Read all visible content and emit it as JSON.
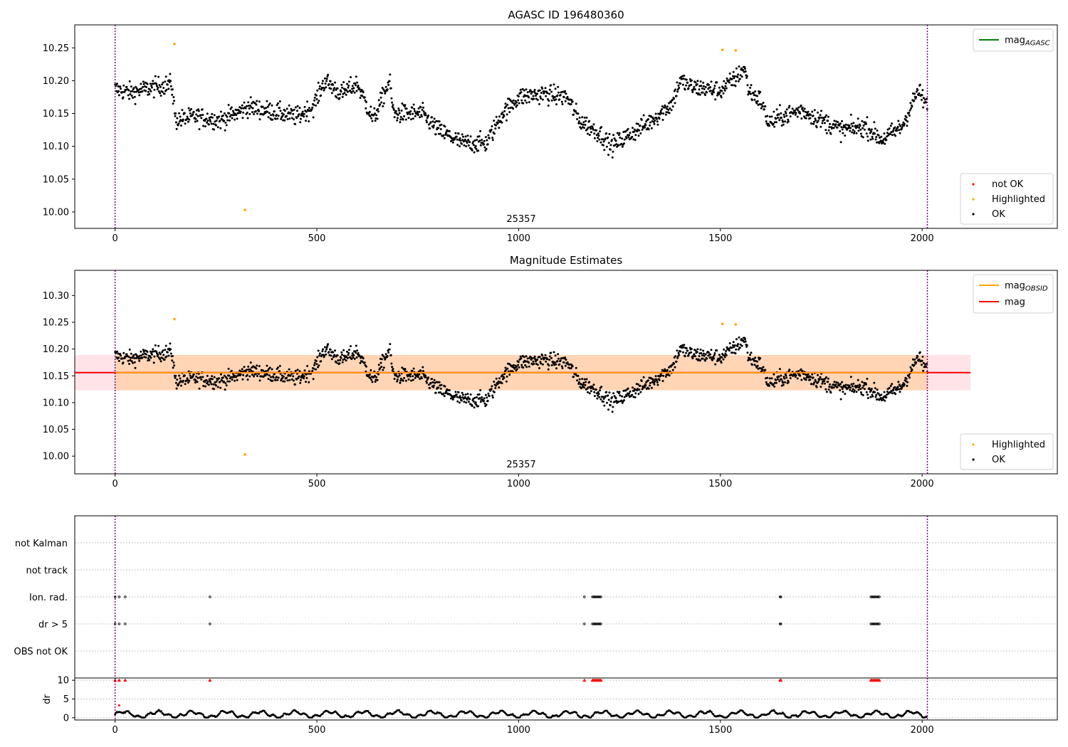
{
  "chart_data": [
    {
      "type": "scatter",
      "title": "AGASC ID 196480360",
      "annotation": "25357",
      "xlim": [
        -100,
        2335
      ],
      "ylim": [
        9.975,
        10.285
      ],
      "xticks": [
        "0",
        "500",
        "1000",
        "1500",
        "2000"
      ],
      "yticks": [
        "10.00",
        "10.05",
        "10.10",
        "10.15",
        "10.20",
        "10.25"
      ],
      "vlines": [
        0,
        2013
      ],
      "legend_lines": [
        {
          "name": "mag",
          "sub": "AGASC",
          "color": "#008000"
        }
      ],
      "legend_points": [
        {
          "name": "not OK",
          "color": "#ff0000"
        },
        {
          "name": "Highlighted",
          "color": "#ffa500"
        },
        {
          "name": "OK",
          "color": "#000000"
        }
      ],
      "highlighted": [
        [
          147,
          10.256
        ],
        [
          322,
          10.003
        ],
        [
          1505,
          10.247
        ],
        [
          1538,
          10.246
        ]
      ],
      "trend": [
        [
          0,
          10.187
        ],
        [
          40,
          10.182
        ],
        [
          80,
          10.188
        ],
        [
          140,
          10.195
        ],
        [
          150,
          10.14
        ],
        [
          200,
          10.145
        ],
        [
          260,
          10.14
        ],
        [
          300,
          10.15
        ],
        [
          330,
          10.16
        ],
        [
          400,
          10.152
        ],
        [
          450,
          10.145
        ],
        [
          490,
          10.16
        ],
        [
          520,
          10.2
        ],
        [
          560,
          10.18
        ],
        [
          600,
          10.195
        ],
        [
          640,
          10.14
        ],
        [
          680,
          10.2
        ],
        [
          690,
          10.15
        ],
        [
          760,
          10.15
        ],
        [
          800,
          10.125
        ],
        [
          860,
          10.105
        ],
        [
          920,
          10.105
        ],
        [
          960,
          10.15
        ],
        [
          1000,
          10.175
        ],
        [
          1060,
          10.18
        ],
        [
          1120,
          10.175
        ],
        [
          1150,
          10.14
        ],
        [
          1200,
          10.12
        ],
        [
          1230,
          10.1
        ],
        [
          1280,
          10.12
        ],
        [
          1320,
          10.135
        ],
        [
          1380,
          10.165
        ],
        [
          1400,
          10.2
        ],
        [
          1430,
          10.19
        ],
        [
          1500,
          10.185
        ],
        [
          1540,
          10.205
        ],
        [
          1560,
          10.22
        ],
        [
          1570,
          10.185
        ],
        [
          1600,
          10.17
        ],
        [
          1620,
          10.135
        ],
        [
          1650,
          10.145
        ],
        [
          1700,
          10.155
        ],
        [
          1750,
          10.14
        ],
        [
          1800,
          10.125
        ],
        [
          1860,
          10.13
        ],
        [
          1900,
          10.11
        ],
        [
          1950,
          10.13
        ],
        [
          1990,
          10.185
        ],
        [
          2013,
          10.16
        ]
      ],
      "spread": 0.026
    },
    {
      "type": "scatter",
      "title": "Magnitude Estimates",
      "annotation": "25357",
      "xlim": [
        -100,
        2335
      ],
      "ylim": [
        9.967,
        10.347
      ],
      "xticks": [
        "0",
        "500",
        "1000",
        "1500",
        "2000"
      ],
      "yticks": [
        "10.00",
        "10.05",
        "10.10",
        "10.15",
        "10.20",
        "10.25",
        "10.30"
      ],
      "vlines": [
        0,
        2013
      ],
      "mag": 10.156,
      "mag_band": [
        10.123,
        10.189
      ],
      "mag_line_span": [
        -100,
        2120
      ],
      "legend_lines": [
        {
          "name": "mag",
          "sub": "OBSID",
          "color": "#ffa500"
        },
        {
          "name": "mag",
          "sub": "",
          "color": "#ff0000"
        }
      ],
      "legend_points": [
        {
          "name": "Highlighted",
          "color": "#ffa500"
        },
        {
          "name": "OK",
          "color": "#000000"
        }
      ],
      "highlighted": [
        [
          147,
          10.256
        ],
        [
          322,
          10.003
        ],
        [
          1505,
          10.247
        ],
        [
          1538,
          10.246
        ]
      ]
    },
    {
      "type": "scatter",
      "title": "",
      "xlim": [
        -100,
        2335
      ],
      "xticks": [
        "0",
        "500",
        "1000",
        "1500",
        "2000"
      ],
      "flag_rows": [
        "not Kalman",
        "not track",
        "Ion. rad.",
        "dr > 5",
        "OBS not OK"
      ],
      "flag_x": [
        0,
        10,
        25,
        235,
        1163,
        1183,
        1186,
        1189,
        1192,
        1195,
        1198,
        1201,
        1204,
        1648,
        1650,
        1873,
        1876,
        1879,
        1882,
        1885,
        1888,
        1891,
        1894
      ],
      "dr_ylabel": "dr",
      "dr_yticks": [
        "0",
        "5",
        "10"
      ],
      "dr_ylim": [
        -0.6,
        10.6
      ],
      "dr_cap": 10
    }
  ]
}
